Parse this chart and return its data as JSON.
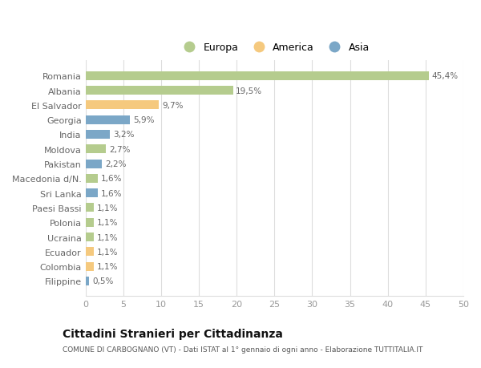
{
  "categories": [
    "Filippine",
    "Colombia",
    "Ecuador",
    "Ucraina",
    "Polonia",
    "Paesi Bassi",
    "Sri Lanka",
    "Macedonia d/N.",
    "Pakistan",
    "Moldova",
    "India",
    "Georgia",
    "El Salvador",
    "Albania",
    "Romania"
  ],
  "values": [
    0.5,
    1.1,
    1.1,
    1.1,
    1.1,
    1.1,
    1.6,
    1.6,
    2.2,
    2.7,
    3.2,
    5.9,
    9.7,
    19.5,
    45.4
  ],
  "labels": [
    "0,5%",
    "1,1%",
    "1,1%",
    "1,1%",
    "1,1%",
    "1,1%",
    "1,6%",
    "1,6%",
    "2,2%",
    "2,7%",
    "3,2%",
    "5,9%",
    "9,7%",
    "19,5%",
    "45,4%"
  ],
  "continent": [
    "Asia",
    "America",
    "America",
    "Europa",
    "Europa",
    "Europa",
    "Asia",
    "Europa",
    "Asia",
    "Europa",
    "Asia",
    "Asia",
    "America",
    "Europa",
    "Europa"
  ],
  "colors": {
    "Europa": "#b5cc8e",
    "America": "#f5c97e",
    "Asia": "#7ba7c7"
  },
  "legend_labels": [
    "Europa",
    "America",
    "Asia"
  ],
  "legend_colors": [
    "#b5cc8e",
    "#f5c97e",
    "#7ba7c7"
  ],
  "xlim": [
    0,
    50
  ],
  "xticks": [
    0,
    5,
    10,
    15,
    20,
    25,
    30,
    35,
    40,
    45,
    50
  ],
  "title": "Cittadini Stranieri per Cittadinanza",
  "subtitle": "COMUNE DI CARBOGNANO (VT) - Dati ISTAT al 1° gennaio di ogni anno - Elaborazione TUTTITALIA.IT",
  "bg_color": "#ffffff",
  "grid_color": "#dddddd",
  "bar_height": 0.6,
  "label_color": "#666666",
  "ytick_color": "#666666",
  "xtick_color": "#999999"
}
